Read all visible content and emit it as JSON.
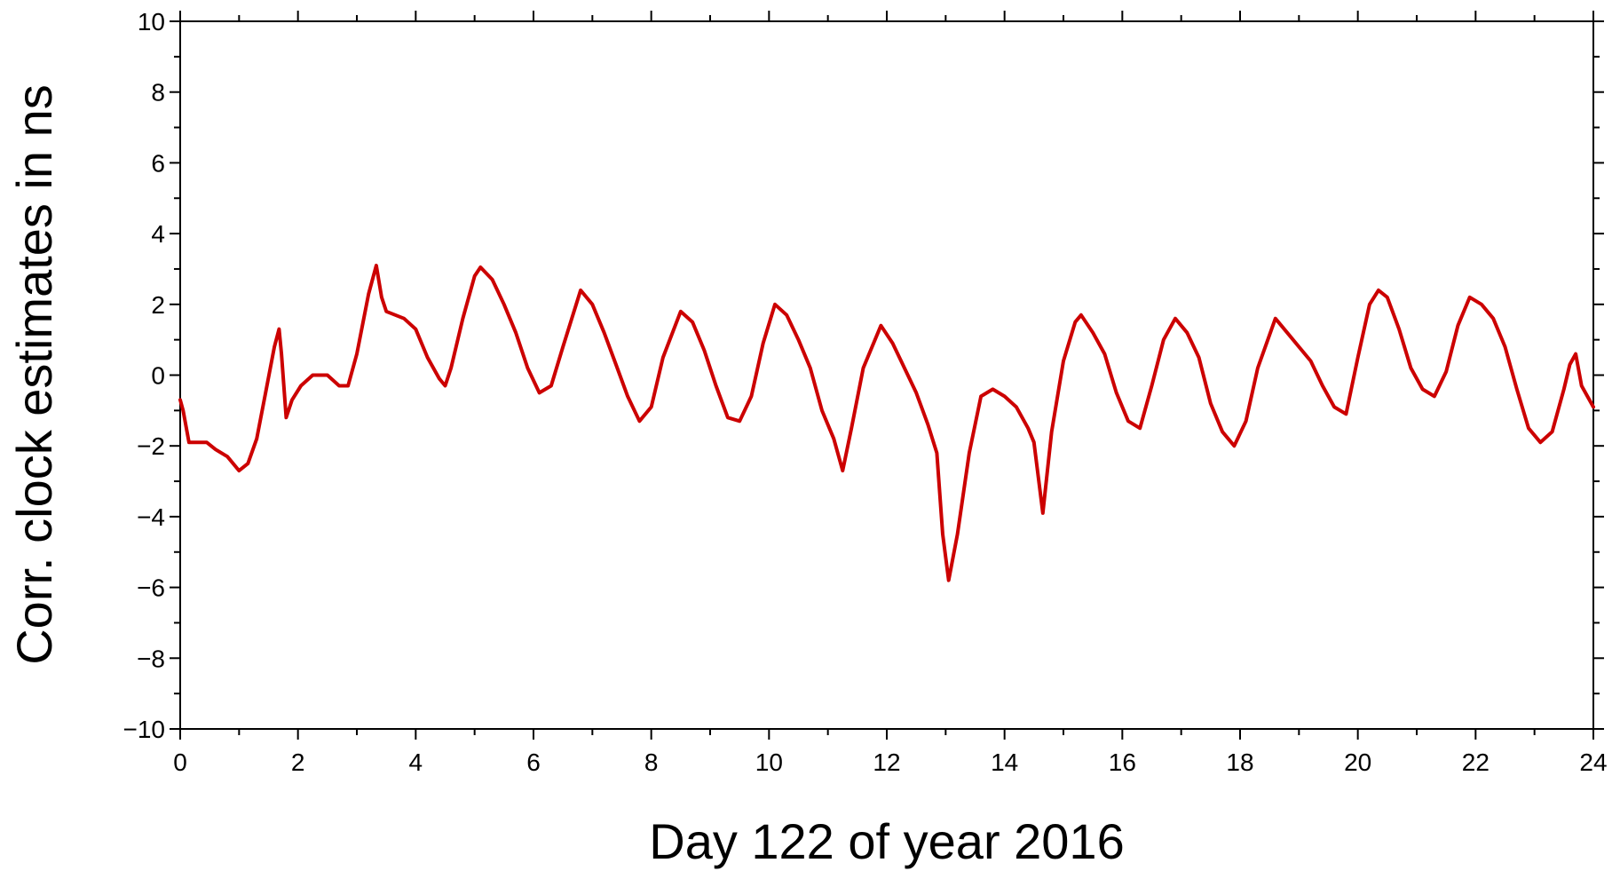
{
  "chart_data": {
    "type": "line",
    "title": "",
    "xlabel": "Day 122 of year 2016",
    "ylabel": "Corr. clock estimates in ns",
    "xlim": [
      0,
      24
    ],
    "ylim": [
      -10,
      10
    ],
    "xticks": [
      0,
      2,
      4,
      6,
      8,
      10,
      12,
      14,
      16,
      18,
      20,
      22,
      24
    ],
    "xtick_labels": [
      "0",
      "2",
      "4",
      "6",
      "8",
      "10",
      "12",
      "14",
      "16",
      "18",
      "20",
      "22",
      "24"
    ],
    "yticks": [
      -10,
      -8,
      -6,
      -4,
      -2,
      0,
      2,
      4,
      6,
      8,
      10
    ],
    "ytick_labels": [
      "−10",
      "−8",
      "−6",
      "−4",
      "−2",
      "0",
      "2",
      "4",
      "6",
      "8",
      "10"
    ],
    "grid": false,
    "legend": "none",
    "colors": {
      "series": "#cc0000",
      "axis": "#000000",
      "background": "#ffffff"
    },
    "series": [
      {
        "x": [
          0.0,
          0.05,
          0.15,
          0.3,
          0.45,
          0.6,
          0.8,
          1.0,
          1.15,
          1.3,
          1.45,
          1.6,
          1.68,
          1.72,
          1.8,
          1.9,
          2.05,
          2.25,
          2.5,
          2.7,
          2.85,
          3.0,
          3.2,
          3.33,
          3.42,
          3.5,
          3.8,
          4.0,
          4.2,
          4.4,
          4.5,
          4.6,
          4.8,
          5.0,
          5.1,
          5.3,
          5.5,
          5.7,
          5.9,
          6.1,
          6.3,
          6.5,
          6.8,
          7.0,
          7.2,
          7.4,
          7.6,
          7.8,
          8.0,
          8.2,
          8.5,
          8.7,
          8.9,
          9.1,
          9.3,
          9.5,
          9.7,
          9.9,
          10.1,
          10.3,
          10.5,
          10.7,
          10.9,
          11.1,
          11.25,
          11.4,
          11.6,
          11.9,
          12.1,
          12.3,
          12.5,
          12.7,
          12.85,
          12.95,
          13.05,
          13.2,
          13.4,
          13.6,
          13.8,
          14.0,
          14.2,
          14.4,
          14.5,
          14.65,
          14.8,
          15.0,
          15.2,
          15.3,
          15.5,
          15.7,
          15.9,
          16.1,
          16.3,
          16.5,
          16.7,
          16.9,
          17.1,
          17.3,
          17.5,
          17.7,
          17.9,
          18.1,
          18.3,
          18.6,
          18.8,
          19.0,
          19.2,
          19.4,
          19.6,
          19.8,
          20.0,
          20.2,
          20.35,
          20.5,
          20.7,
          20.9,
          21.1,
          21.3,
          21.5,
          21.7,
          21.9,
          22.1,
          22.3,
          22.5,
          22.7,
          22.9,
          23.1,
          23.3,
          23.5,
          23.6,
          23.7,
          23.8,
          24.0
        ],
        "y": [
          -0.7,
          -1.0,
          -1.9,
          -1.9,
          -1.9,
          -2.1,
          -2.3,
          -2.7,
          -2.5,
          -1.8,
          -0.5,
          0.8,
          1.3,
          0.6,
          -1.2,
          -0.7,
          -0.3,
          0.0,
          0.0,
          -0.3,
          -0.3,
          0.6,
          2.3,
          3.1,
          2.2,
          1.8,
          1.6,
          1.3,
          0.5,
          -0.1,
          -0.3,
          0.2,
          1.6,
          2.8,
          3.05,
          2.7,
          2.0,
          1.2,
          0.2,
          -0.5,
          -0.3,
          0.8,
          2.4,
          2.0,
          1.2,
          0.3,
          -0.6,
          -1.3,
          -0.9,
          0.5,
          1.8,
          1.5,
          0.7,
          -0.3,
          -1.2,
          -1.3,
          -0.6,
          0.9,
          2.0,
          1.7,
          1.0,
          0.2,
          -1.0,
          -1.8,
          -2.7,
          -1.5,
          0.2,
          1.4,
          0.9,
          0.2,
          -0.5,
          -1.4,
          -2.2,
          -4.5,
          -5.8,
          -4.5,
          -2.2,
          -0.6,
          -0.4,
          -0.6,
          -0.9,
          -1.5,
          -1.9,
          -3.9,
          -1.6,
          0.4,
          1.5,
          1.7,
          1.2,
          0.6,
          -0.5,
          -1.3,
          -1.5,
          -0.3,
          1.0,
          1.6,
          1.2,
          0.5,
          -0.8,
          -1.6,
          -2.0,
          -1.3,
          0.2,
          1.6,
          1.2,
          0.8,
          0.4,
          -0.3,
          -0.9,
          -1.1,
          0.5,
          2.0,
          2.4,
          2.2,
          1.3,
          0.2,
          -0.4,
          -0.6,
          0.1,
          1.4,
          2.2,
          2.0,
          1.6,
          0.8,
          -0.4,
          -1.5,
          -1.9,
          -1.6,
          -0.4,
          0.3,
          0.6,
          -0.3,
          -0.9
        ]
      }
    ]
  }
}
